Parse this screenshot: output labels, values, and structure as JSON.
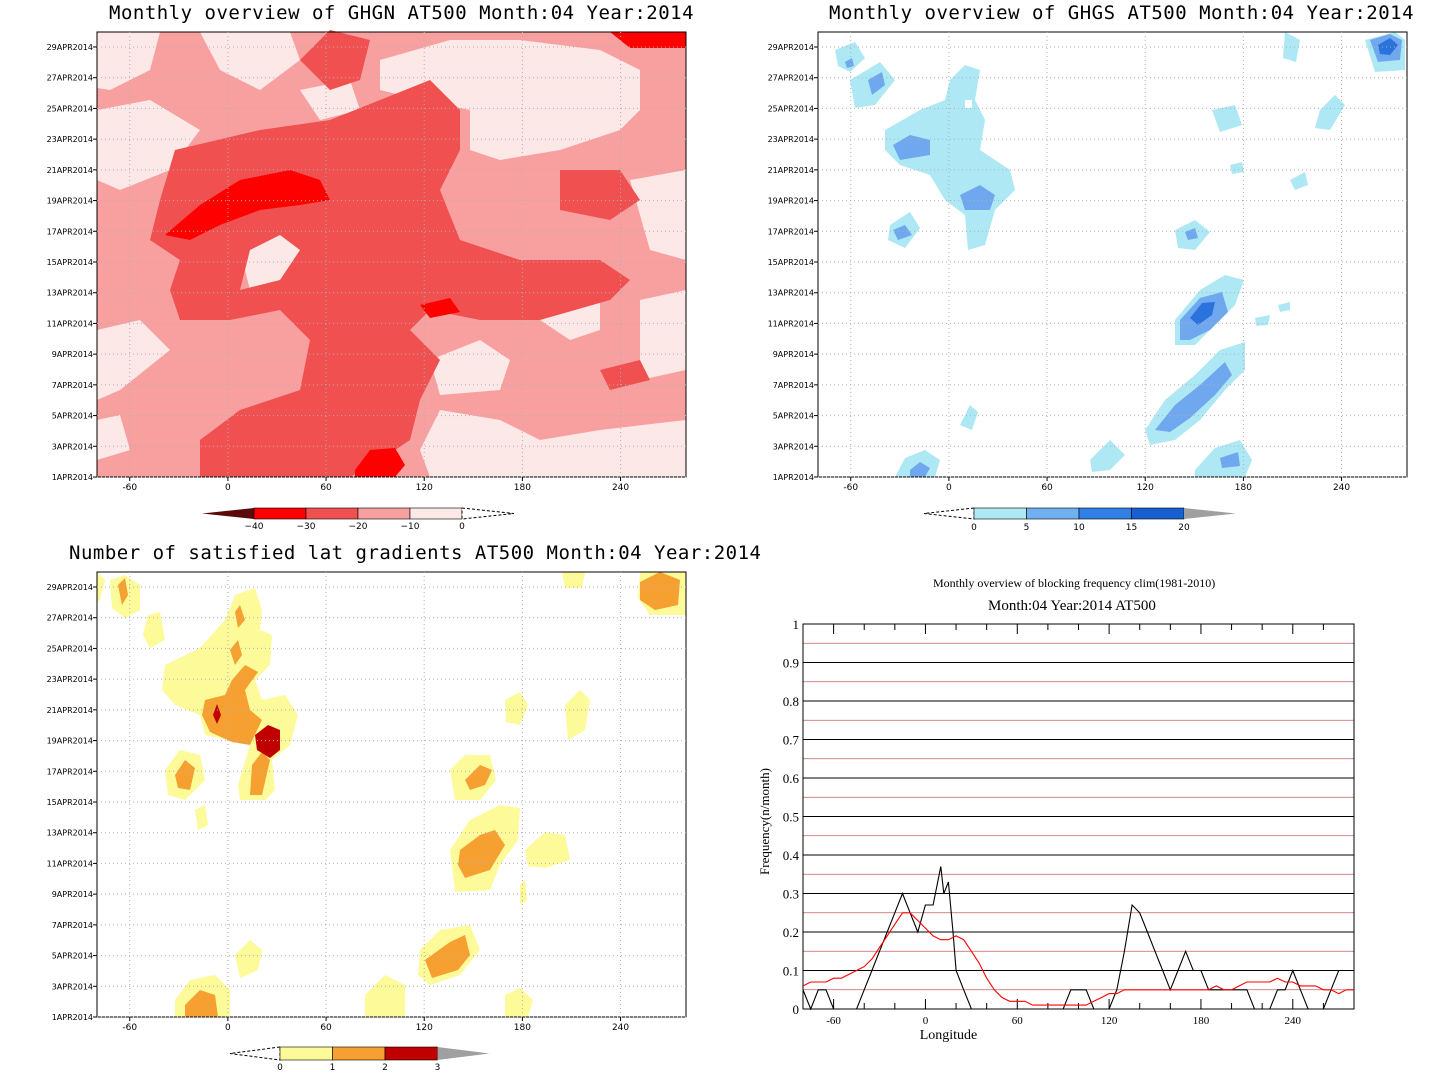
{
  "chart_data": [
    {
      "id": "ghgn",
      "type": "heatmap",
      "title": "Monthly overview of GHGN AT500 Month:04 Year:2014",
      "x_ticks": [
        "-60",
        "0",
        "60",
        "120",
        "180",
        "240"
      ],
      "y_ticks": [
        "1APR2014",
        "3APR2014",
        "5APR2014",
        "7APR2014",
        "9APR2014",
        "11APR2014",
        "13APR2014",
        "15APR2014",
        "17APR2014",
        "19APR2014",
        "21APR2014",
        "23APR2014",
        "25APR2014",
        "27APR2014",
        "29APR2014"
      ],
      "colorbar": {
        "levels": [
          -40,
          -30,
          -20,
          -10,
          0
        ],
        "labels": [
          "-40",
          "-30",
          "-20",
          "-10",
          "0"
        ],
        "colors": [
          "#5a0a0a",
          "#ff0000",
          "#f05050",
          "#f8a0a0",
          "#fde8e8"
        ]
      },
      "colors": {
        "base": "#f8a0a0",
        "light": "#fde8e8",
        "mid": "#f05050",
        "dark": "#ff0000"
      }
    },
    {
      "id": "ghgs",
      "type": "heatmap",
      "title": "Monthly overview of GHGS AT500 Month:04 Year:2014",
      "x_ticks": [
        "-60",
        "0",
        "60",
        "120",
        "180",
        "240"
      ],
      "y_ticks": [
        "1APR2014",
        "3APR2014",
        "5APR2014",
        "7APR2014",
        "9APR2014",
        "11APR2014",
        "13APR2014",
        "15APR2014",
        "17APR2014",
        "19APR2014",
        "21APR2014",
        "23APR2014",
        "25APR2014",
        "27APR2014",
        "29APR2014"
      ],
      "colorbar": {
        "levels": [
          0,
          5,
          10,
          15,
          20
        ],
        "labels": [
          "0",
          "5",
          "10",
          "15",
          "20"
        ],
        "colors": [
          "#aee8f4",
          "#6fb0f0",
          "#3080e8",
          "#1860d0",
          "#a0a0a0"
        ]
      },
      "colors": {
        "light": "#aee8f4",
        "mid": "#6fa8ee",
        "dark": "#2a72dc"
      }
    },
    {
      "id": "latgrad",
      "type": "heatmap",
      "title": "Number of satisfied lat gradients AT500 Month:04 Year:2014",
      "x_ticks": [
        "-60",
        "0",
        "60",
        "120",
        "180",
        "240"
      ],
      "y_ticks": [
        "1APR2014",
        "3APR2014",
        "5APR2014",
        "7APR2014",
        "9APR2014",
        "11APR2014",
        "13APR2014",
        "15APR2014",
        "17APR2014",
        "19APR2014",
        "21APR2014",
        "23APR2014",
        "25APR2014",
        "27APR2014",
        "29APR2014"
      ],
      "colorbar": {
        "levels": [
          0,
          1,
          2,
          3
        ],
        "labels": [
          "0",
          "1",
          "2",
          "3"
        ],
        "colors": [
          "#fdfa9a",
          "#f5a030",
          "#c00000",
          "#a0a0a0"
        ]
      },
      "colors": {
        "c1": "#fdfa9a",
        "c2": "#f5a030",
        "c3": "#c00000"
      }
    },
    {
      "id": "blockfreq",
      "type": "line",
      "title": "Monthly overview of blocking frequency clim(1981-2010)",
      "subtitle": "Month:04 Year:2014  AT500",
      "xlabel": "Longitude",
      "ylabel": "Frequency(n/month)",
      "xlim": [
        -80,
        280
      ],
      "ylim": [
        0,
        1
      ],
      "x_ticks": [
        "-60",
        "0",
        "60",
        "120",
        "180",
        "240"
      ],
      "y_ticks": [
        "0",
        "0.1",
        "0.2",
        "0.3",
        "0.4",
        "0.5",
        "0.6",
        "0.7",
        "0.8",
        "0.9",
        "1"
      ],
      "series": [
        {
          "color": "#000000",
          "x": [
            -80,
            -75,
            -70,
            -65,
            -60,
            -55,
            -50,
            -45,
            -40,
            -35,
            -30,
            -25,
            -20,
            -15,
            -10,
            -5,
            0,
            5,
            10,
            12,
            15,
            18,
            20,
            25,
            30,
            35,
            40,
            45,
            50,
            55,
            60,
            65,
            70,
            75,
            80,
            85,
            90,
            95,
            100,
            105,
            110,
            115,
            120,
            125,
            130,
            135,
            140,
            145,
            150,
            155,
            160,
            165,
            170,
            175,
            180,
            185,
            190,
            195,
            200,
            205,
            210,
            215,
            220,
            225,
            230,
            235,
            240,
            245,
            250,
            255,
            260,
            265,
            270,
            275,
            280
          ],
          "y": [
            0.05,
            0.0,
            0.05,
            0.05,
            0.0,
            0.0,
            0.0,
            0.0,
            0.05,
            0.1,
            0.15,
            0.2,
            0.25,
            0.3,
            0.25,
            0.2,
            0.27,
            0.27,
            0.37,
            0.3,
            0.33,
            0.2,
            0.1,
            0.05,
            0.0,
            0.0,
            0.0,
            0.0,
            0.0,
            0.0,
            0.0,
            0.0,
            0.0,
            0.0,
            0.0,
            0.0,
            0.0,
            0.05,
            0.05,
            0.05,
            0.0,
            0.0,
            0.0,
            0.05,
            0.15,
            0.27,
            0.25,
            0.2,
            0.15,
            0.1,
            0.05,
            0.1,
            0.15,
            0.1,
            0.1,
            0.05,
            0.05,
            0.05,
            0.05,
            0.05,
            0.05,
            0.0,
            0.0,
            0.0,
            0.05,
            0.05,
            0.1,
            0.05,
            0.0,
            0.0,
            0.0,
            0.05,
            0.1,
            0.1,
            0.1
          ]
        },
        {
          "color": "#ff0000",
          "x": [
            -80,
            -75,
            -70,
            -65,
            -60,
            -55,
            -50,
            -45,
            -40,
            -35,
            -30,
            -25,
            -20,
            -15,
            -10,
            -5,
            0,
            5,
            10,
            15,
            20,
            25,
            30,
            35,
            40,
            45,
            50,
            55,
            60,
            65,
            70,
            75,
            80,
            85,
            90,
            95,
            100,
            105,
            110,
            115,
            120,
            125,
            130,
            135,
            140,
            145,
            150,
            155,
            160,
            165,
            170,
            175,
            180,
            185,
            190,
            195,
            200,
            205,
            210,
            215,
            220,
            225,
            230,
            235,
            240,
            245,
            250,
            255,
            260,
            265,
            270,
            275,
            280
          ],
          "y": [
            0.06,
            0.07,
            0.07,
            0.07,
            0.08,
            0.08,
            0.09,
            0.1,
            0.11,
            0.13,
            0.16,
            0.19,
            0.22,
            0.25,
            0.25,
            0.23,
            0.21,
            0.19,
            0.18,
            0.18,
            0.19,
            0.18,
            0.15,
            0.12,
            0.08,
            0.05,
            0.03,
            0.02,
            0.02,
            0.02,
            0.01,
            0.01,
            0.01,
            0.01,
            0.01,
            0.01,
            0.01,
            0.01,
            0.02,
            0.03,
            0.04,
            0.04,
            0.05,
            0.05,
            0.05,
            0.05,
            0.05,
            0.05,
            0.05,
            0.05,
            0.05,
            0.05,
            0.05,
            0.05,
            0.06,
            0.05,
            0.05,
            0.06,
            0.07,
            0.07,
            0.07,
            0.07,
            0.08,
            0.07,
            0.07,
            0.06,
            0.06,
            0.06,
            0.05,
            0.05,
            0.04,
            0.05,
            0.05
          ]
        }
      ]
    }
  ]
}
